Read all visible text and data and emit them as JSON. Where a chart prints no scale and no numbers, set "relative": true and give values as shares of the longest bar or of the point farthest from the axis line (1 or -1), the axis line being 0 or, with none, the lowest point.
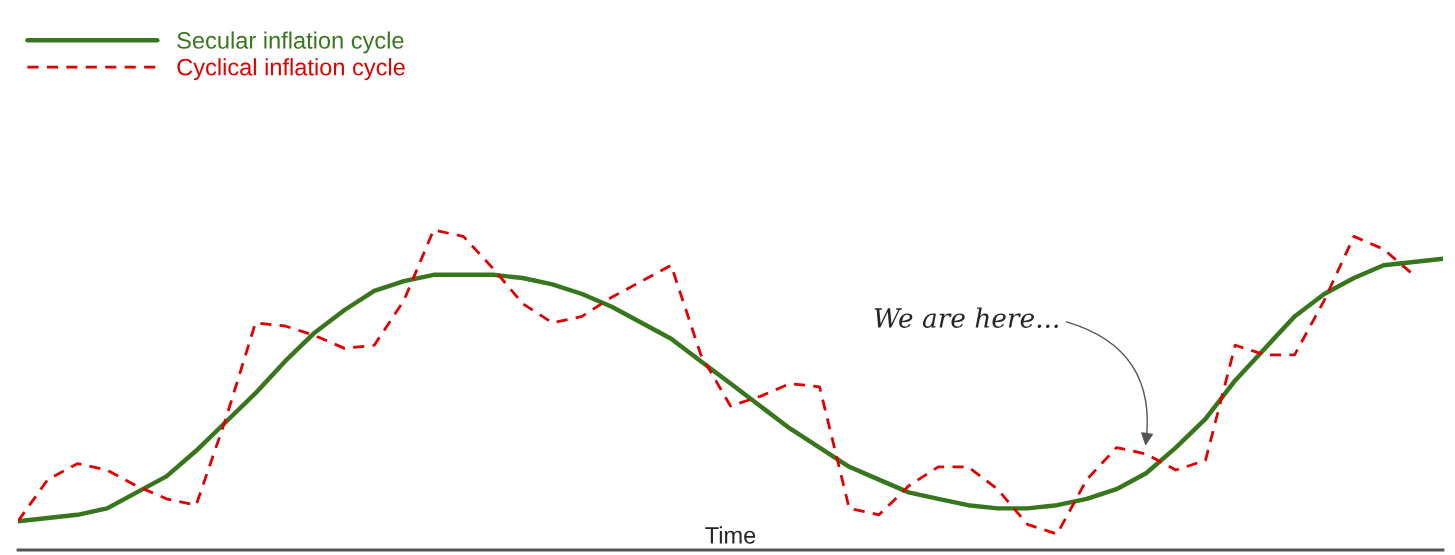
{
  "chart_data": {
    "type": "line",
    "relative": true,
    "xlabel": "Time",
    "legend": "top left",
    "grid": false,
    "marker": "none",
    "categories": [
      null,
      null,
      null,
      null,
      null,
      null,
      null,
      null,
      null,
      null,
      null,
      null,
      null,
      null,
      null,
      null,
      null,
      null,
      null,
      null,
      null,
      null,
      null,
      null,
      null,
      null,
      null,
      null,
      null,
      null,
      null,
      null,
      null,
      null,
      null,
      null,
      null,
      null,
      null,
      null,
      null,
      null,
      null,
      null,
      null,
      null,
      null,
      null,
      null
    ],
    "series": [
      {
        "name": "Secular inflation cycle",
        "color": "#38761d",
        "line_style": "solid",
        "values": [
          0.09,
          0.1,
          0.11,
          0.13,
          0.18,
          0.23,
          0.31,
          0.4,
          0.49,
          0.59,
          0.68,
          0.75,
          0.81,
          0.84,
          0.86,
          0.86,
          0.86,
          0.85,
          0.83,
          0.8,
          0.76,
          0.71,
          0.66,
          0.59,
          0.52,
          0.45,
          0.38,
          0.32,
          0.26,
          0.22,
          0.18,
          0.16,
          0.14,
          0.13,
          0.13,
          0.14,
          0.16,
          0.19,
          0.24,
          0.32,
          0.41,
          0.53,
          0.63,
          0.73,
          0.8,
          0.85,
          0.89,
          0.9,
          0.91
        ]
      },
      {
        "name": "Cyclical inflation cycle",
        "color": "#e00000",
        "line_style": "dashed",
        "values": [
          0.09,
          0.22,
          0.27,
          0.25,
          0.2,
          0.16,
          0.14,
          0.41,
          0.71,
          0.7,
          0.67,
          0.63,
          0.64,
          0.78,
          1.0,
          0.98,
          0.88,
          0.77,
          0.71,
          0.73,
          0.79,
          0.84,
          0.89,
          0.61,
          0.45,
          0.48,
          0.52,
          0.51,
          0.13,
          0.11,
          0.2,
          0.26,
          0.26,
          0.19,
          0.08,
          0.05,
          0.22,
          0.32,
          0.3,
          0.25,
          0.28,
          0.64,
          0.61,
          0.61,
          0.78,
          0.98,
          0.94,
          0.86,
          null
        ]
      }
    ],
    "annotations": [
      "We are here..."
    ]
  }
}
